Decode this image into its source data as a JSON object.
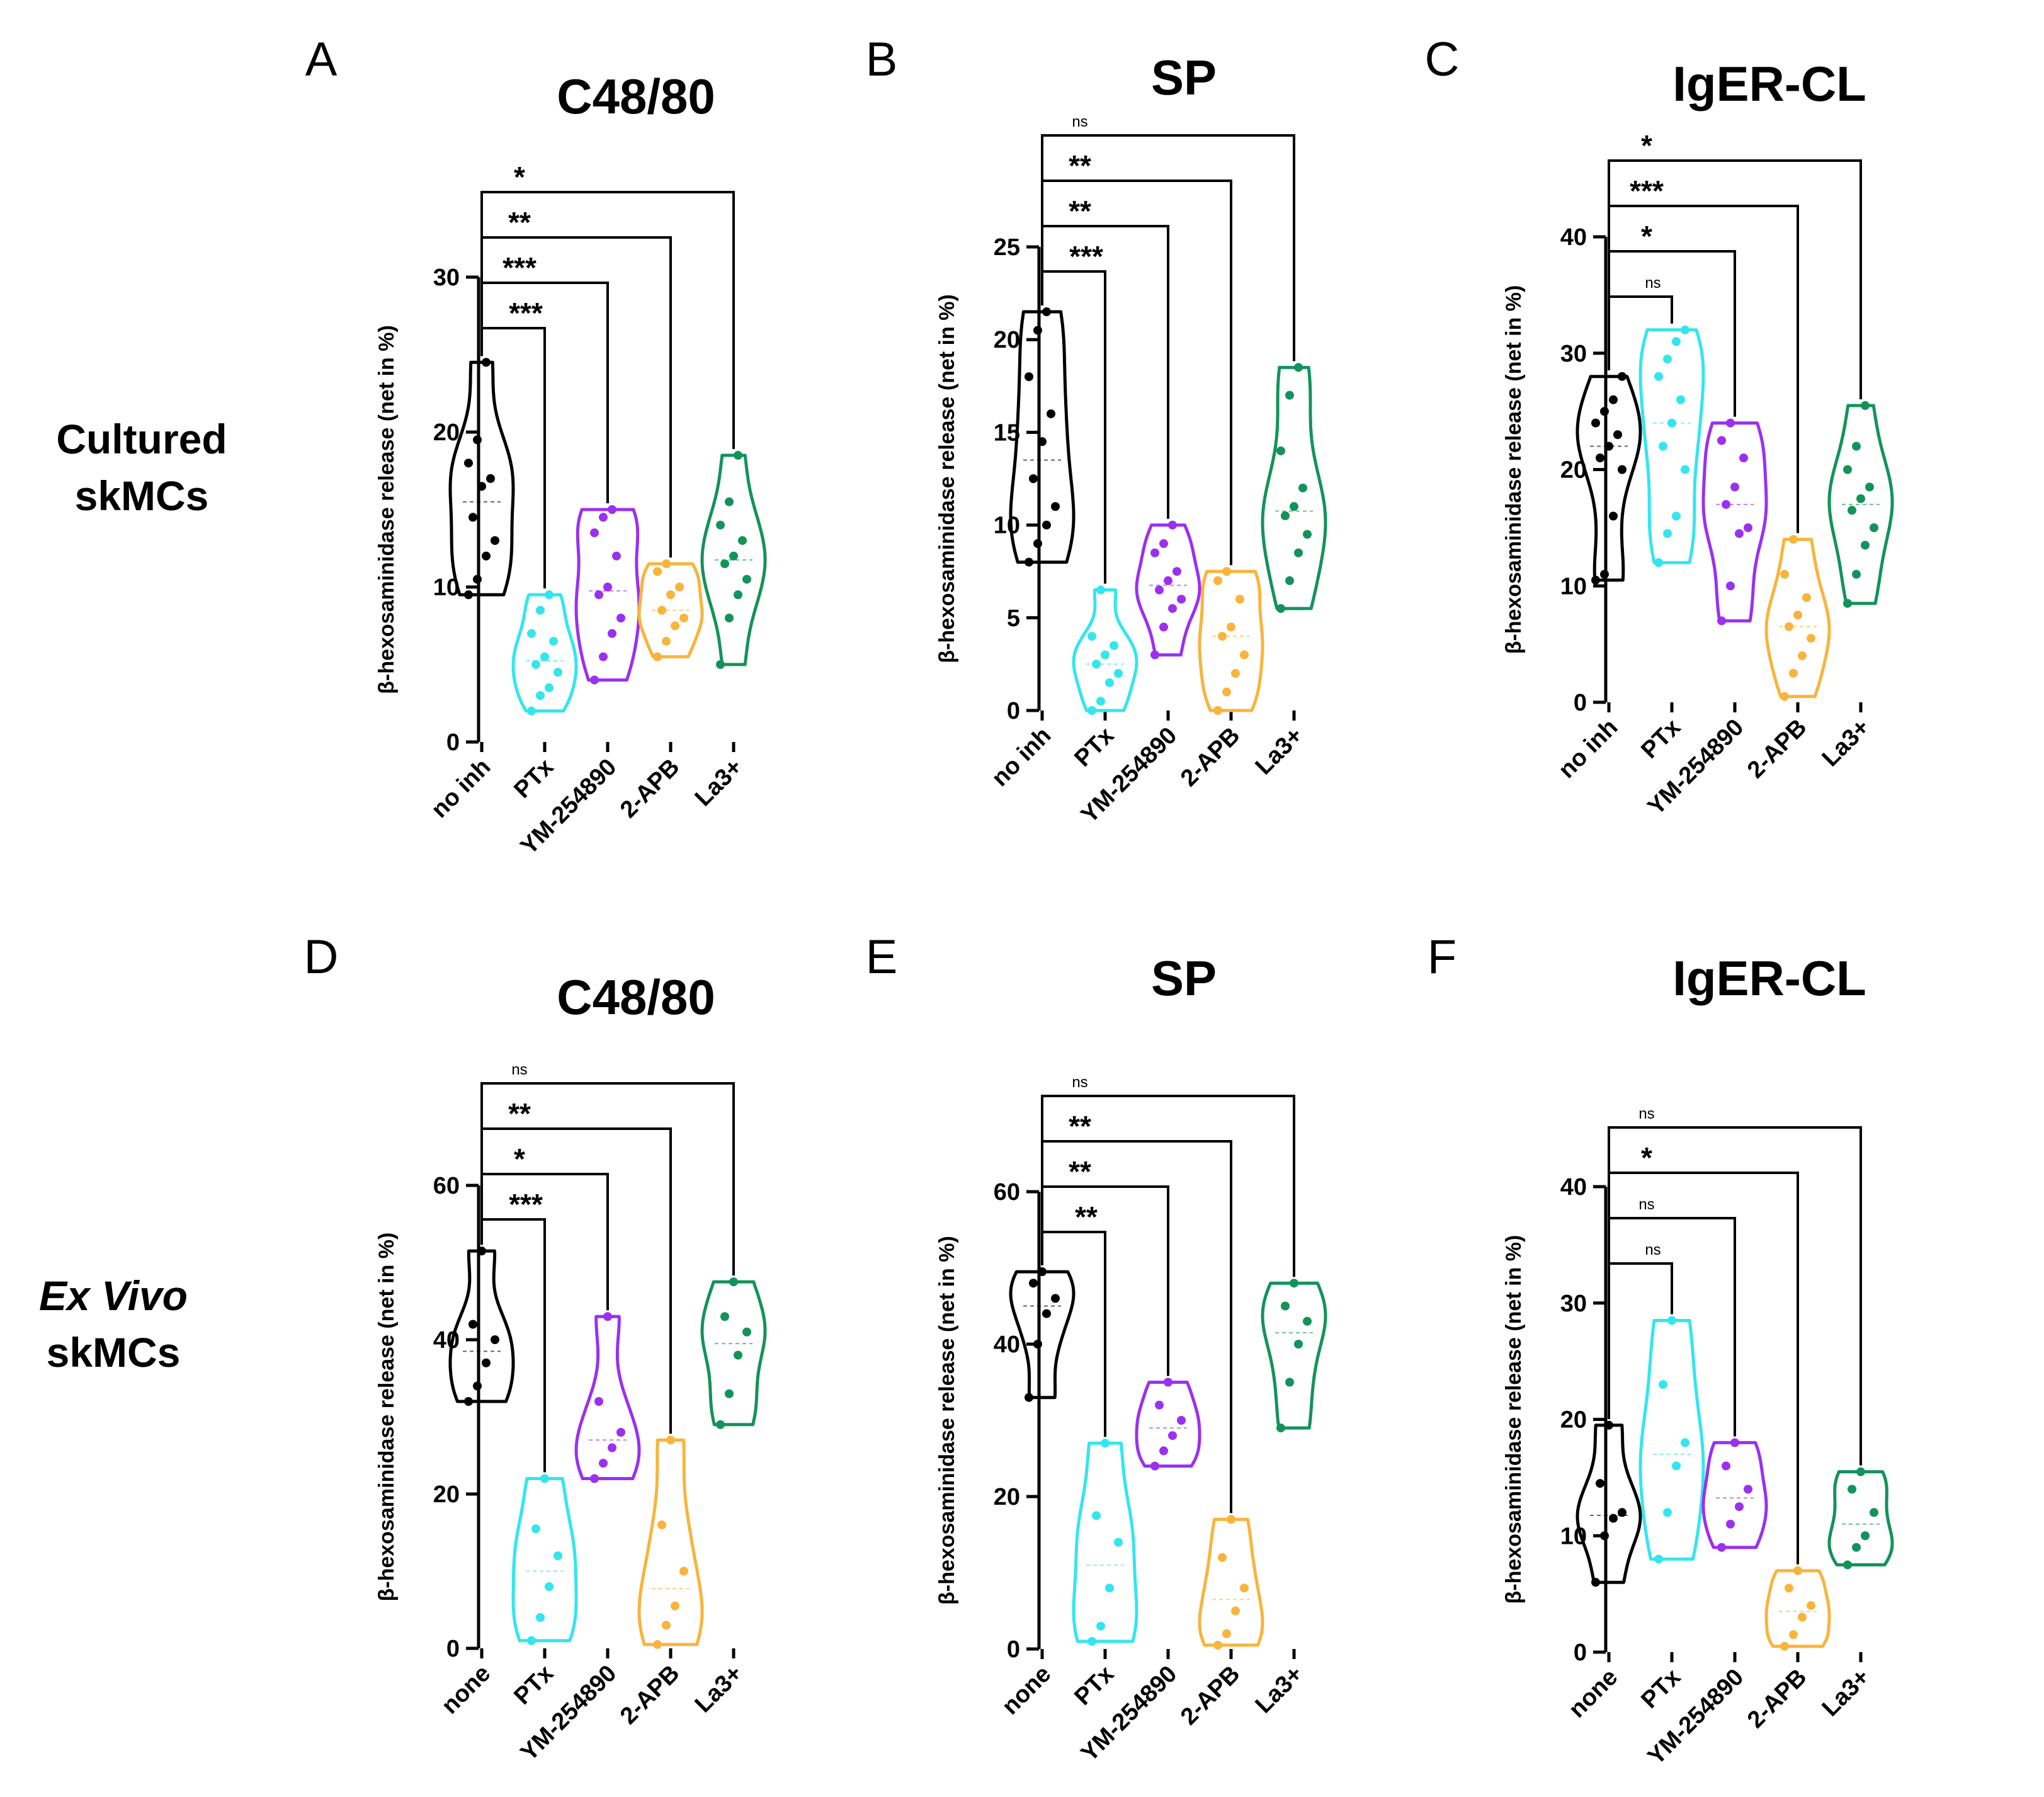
{
  "colors": {
    "axis": "#000000",
    "groups": [
      "#000000",
      "#33e6ee",
      "#9b30f0",
      "#f8b43c",
      "#12935a"
    ]
  },
  "row_labels": [
    {
      "line1": "Cultured",
      "line2": "skMCs",
      "italic": false
    },
    {
      "line1": "Ex Vivo",
      "line2": "skMCs",
      "italic": true
    }
  ],
  "chart_data": [
    {
      "panel": "A",
      "title": "C48/80",
      "type": "violin",
      "ylabel": "β-hexosaminidase release (net in %)",
      "ylim": [
        0,
        30
      ],
      "yticks": [
        0,
        10,
        20,
        30
      ],
      "categories": [
        "no inh",
        "PTx",
        "YM-254890",
        "2-APB",
        "La3+"
      ],
      "series": [
        {
          "name": "no inh",
          "values": [
            9.5,
            10.5,
            12.0,
            13.0,
            14.5,
            16.5,
            17.0,
            18.0,
            19.5,
            24.5
          ]
        },
        {
          "name": "PTx",
          "values": [
            2.0,
            3.0,
            3.5,
            4.5,
            5.0,
            5.5,
            6.5,
            7.0,
            8.5,
            9.5
          ]
        },
        {
          "name": "YM-254890",
          "values": [
            4.0,
            5.5,
            7.0,
            8.0,
            9.5,
            10.0,
            12.0,
            13.5,
            14.5,
            15.0
          ]
        },
        {
          "name": "2-APB",
          "values": [
            5.5,
            6.5,
            7.5,
            8.0,
            8.5,
            9.5,
            10.0,
            11.0,
            11.5
          ]
        },
        {
          "name": "La3+",
          "values": [
            5.0,
            8.0,
            9.5,
            10.5,
            11.5,
            12.0,
            13.0,
            14.0,
            15.5,
            18.5
          ]
        }
      ],
      "significance": [
        {
          "group": 1,
          "label": "***"
        },
        {
          "group": 2,
          "label": "***"
        },
        {
          "group": 3,
          "label": "**"
        },
        {
          "group": 4,
          "label": "*"
        }
      ]
    },
    {
      "panel": "B",
      "title": "SP",
      "type": "violin",
      "ylabel": "β-hexosaminidase release (net in %)",
      "ylim": [
        0,
        25
      ],
      "yticks": [
        0,
        5,
        10,
        15,
        20,
        25
      ],
      "categories": [
        "no inh",
        "PTx",
        "YM-254890",
        "2-APB",
        "La3+"
      ],
      "series": [
        {
          "name": "no inh",
          "values": [
            8.0,
            9.0,
            10.0,
            11.0,
            12.5,
            14.5,
            16.0,
            18.0,
            20.5,
            21.5
          ]
        },
        {
          "name": "PTx",
          "values": [
            0.0,
            0.5,
            1.5,
            2.0,
            2.5,
            3.0,
            3.5,
            4.0,
            6.5
          ]
        },
        {
          "name": "YM-254890",
          "values": [
            3.0,
            4.5,
            5.5,
            6.0,
            6.5,
            7.0,
            7.5,
            8.5,
            9.0,
            10.0
          ]
        },
        {
          "name": "2-APB",
          "values": [
            0.0,
            1.0,
            2.0,
            3.0,
            4.0,
            4.5,
            6.0,
            7.0,
            7.5
          ]
        },
        {
          "name": "La3+",
          "values": [
            5.5,
            7.0,
            8.5,
            9.5,
            10.5,
            11.0,
            12.0,
            14.0,
            17.0,
            18.5
          ]
        }
      ],
      "significance": [
        {
          "group": 1,
          "label": "***"
        },
        {
          "group": 2,
          "label": "**"
        },
        {
          "group": 3,
          "label": "**"
        },
        {
          "group": 4,
          "label": "ns"
        }
      ]
    },
    {
      "panel": "C",
      "title": "IgER-CL",
      "type": "violin",
      "ylabel": "β-hexosaminidase release (net in %)",
      "ylim": [
        0,
        40
      ],
      "yticks": [
        0,
        10,
        20,
        30,
        40
      ],
      "categories": [
        "no inh",
        "PTx",
        "YM-254890",
        "2-APB",
        "La3+"
      ],
      "series": [
        {
          "name": "no inh",
          "values": [
            10.5,
            11.0,
            16.0,
            20.0,
            21.0,
            22.0,
            23.0,
            24.0,
            25.0,
            26.0,
            28.0
          ]
        },
        {
          "name": "PTx",
          "values": [
            12.0,
            14.5,
            16.0,
            20.0,
            22.0,
            24.0,
            26.0,
            28.0,
            29.5,
            31.0,
            32.0
          ]
        },
        {
          "name": "YM-254890",
          "values": [
            7.0,
            10.0,
            14.5,
            15.0,
            17.0,
            18.5,
            21.0,
            22.5,
            24.0
          ]
        },
        {
          "name": "2-APB",
          "values": [
            0.5,
            2.5,
            4.0,
            5.5,
            6.5,
            7.5,
            9.0,
            11.0,
            14.0
          ]
        },
        {
          "name": "La3+",
          "values": [
            8.5,
            11.0,
            13.5,
            15.0,
            16.5,
            17.5,
            18.5,
            20.0,
            22.0,
            25.5
          ]
        }
      ],
      "significance": [
        {
          "group": 1,
          "label": "ns"
        },
        {
          "group": 2,
          "label": "*"
        },
        {
          "group": 3,
          "label": "***"
        },
        {
          "group": 4,
          "label": "*"
        }
      ]
    },
    {
      "panel": "D",
      "title": "C48/80",
      "type": "violin",
      "ylabel": "β-hexosaminidase release (net in %)",
      "ylim": [
        0,
        60
      ],
      "yticks": [
        0,
        20,
        40,
        60
      ],
      "categories": [
        "none",
        "PTx",
        "YM-254890",
        "2-APB",
        "La3+"
      ],
      "series": [
        {
          "name": "none",
          "values": [
            32.0,
            34.0,
            37.0,
            40.0,
            42.0,
            51.5
          ]
        },
        {
          "name": "PTx",
          "values": [
            1.0,
            4.0,
            8.0,
            12.0,
            15.5,
            22.0
          ]
        },
        {
          "name": "YM-254890",
          "values": [
            22.0,
            24.0,
            26.0,
            28.0,
            32.0,
            43.0
          ]
        },
        {
          "name": "2-APB",
          "values": [
            0.5,
            3.0,
            5.5,
            10.0,
            16.0,
            27.0
          ]
        },
        {
          "name": "La3+",
          "values": [
            29.0,
            33.0,
            38.0,
            41.0,
            43.0,
            47.5
          ]
        }
      ],
      "significance": [
        {
          "group": 1,
          "label": "***"
        },
        {
          "group": 2,
          "label": "*"
        },
        {
          "group": 3,
          "label": "**"
        },
        {
          "group": 4,
          "label": "ns"
        }
      ]
    },
    {
      "panel": "E",
      "title": "SP",
      "type": "violin",
      "ylabel": "β-hexosaminidase release (net in %)",
      "ylim": [
        0,
        60
      ],
      "yticks": [
        0,
        20,
        40,
        60
      ],
      "categories": [
        "none",
        "PTx",
        "YM-254890",
        "2-APB",
        "La3+"
      ],
      "series": [
        {
          "name": "none",
          "values": [
            33.0,
            40.0,
            44.0,
            46.0,
            48.0,
            49.5
          ]
        },
        {
          "name": "PTx",
          "values": [
            1.0,
            3.0,
            8.0,
            14.0,
            17.5,
            27.0
          ]
        },
        {
          "name": "YM-254890",
          "values": [
            24.0,
            26.0,
            28.0,
            30.0,
            32.0,
            35.0
          ]
        },
        {
          "name": "2-APB",
          "values": [
            0.5,
            2.0,
            5.0,
            8.0,
            12.0,
            17.0
          ]
        },
        {
          "name": "La3+",
          "values": [
            29.0,
            35.0,
            40.0,
            43.0,
            45.0,
            48.0
          ]
        }
      ],
      "significance": [
        {
          "group": 1,
          "label": "**"
        },
        {
          "group": 2,
          "label": "**"
        },
        {
          "group": 3,
          "label": "**"
        },
        {
          "group": 4,
          "label": "ns"
        }
      ]
    },
    {
      "panel": "F",
      "title": "IgER-CL",
      "type": "violin",
      "ylabel": "β-hexosaminidase release (net in %)",
      "ylim": [
        0,
        40
      ],
      "yticks": [
        0,
        10,
        20,
        30,
        40
      ],
      "categories": [
        "none",
        "PTx",
        "YM-254890",
        "2-APB",
        "La3+"
      ],
      "series": [
        {
          "name": "none",
          "values": [
            6.0,
            10.0,
            11.5,
            12.0,
            14.5,
            19.5
          ]
        },
        {
          "name": "PTx",
          "values": [
            8.0,
            12.0,
            16.0,
            18.0,
            23.0,
            28.5
          ]
        },
        {
          "name": "YM-254890",
          "values": [
            9.0,
            11.0,
            12.5,
            14.0,
            16.0,
            18.0
          ]
        },
        {
          "name": "2-APB",
          "values": [
            0.5,
            1.5,
            3.0,
            4.0,
            5.5,
            7.0
          ]
        },
        {
          "name": "La3+",
          "values": [
            7.5,
            9.0,
            10.0,
            12.0,
            14.0,
            15.5
          ]
        }
      ],
      "significance": [
        {
          "group": 1,
          "label": "ns"
        },
        {
          "group": 2,
          "label": "ns"
        },
        {
          "group": 3,
          "label": "*"
        },
        {
          "group": 4,
          "label": "ns"
        }
      ]
    }
  ]
}
